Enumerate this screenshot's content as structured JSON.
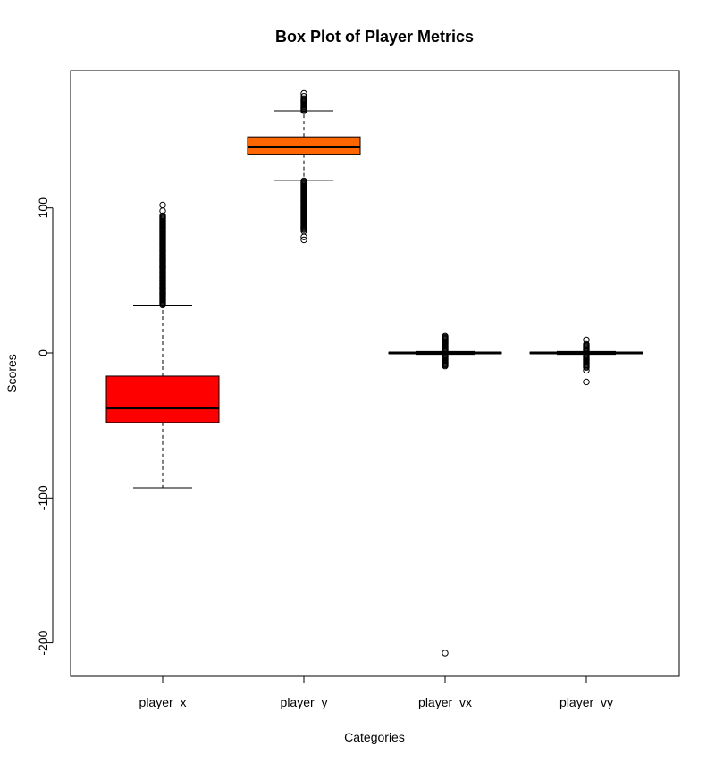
{
  "chart_data": {
    "type": "box",
    "title": "Box Plot of Player Metrics",
    "xlabel": "Categories",
    "ylabel": "Scores",
    "ylim": [
      -225,
      195
    ],
    "yticks": [
      -200,
      -100,
      0,
      100
    ],
    "categories": [
      "player_x",
      "player_y",
      "player_vx",
      "player_vy"
    ],
    "boxes": [
      {
        "name": "player_x",
        "color": "#ff0000",
        "whisker_low": -93,
        "q1": -48,
        "median": -38,
        "q3": -16,
        "whisker_high": 33,
        "outliers_high_range": [
          33,
          95
        ],
        "outliers_extra": [
          102,
          98,
          64,
          59,
          50,
          45,
          41
        ],
        "outliers_low_range": null
      },
      {
        "name": "player_y",
        "color": "#ff6600",
        "whisker_low": 119,
        "q1": 137,
        "median": 142,
        "q3": 149,
        "whisker_high": 167,
        "outliers_high_range": [
          167,
          176
        ],
        "outliers_extra": [
          179,
          177,
          80,
          78,
          84
        ],
        "outliers_low_range": [
          85,
          119
        ]
      },
      {
        "name": "player_vx",
        "color": "#ffffff",
        "whisker_low": -1,
        "q1": -0.5,
        "median": 0,
        "q3": 0.5,
        "whisker_high": 1,
        "outliers_high_range": [
          1,
          12
        ],
        "outliers_extra": [
          -207
        ],
        "outliers_low_range": [
          -9,
          -1
        ]
      },
      {
        "name": "player_vy",
        "color": "#ffffff",
        "whisker_low": -1,
        "q1": -0.5,
        "median": 0,
        "q3": 0.5,
        "whisker_high": 1,
        "outliers_high_range": [
          1,
          6
        ],
        "outliers_extra": [
          9,
          -20,
          -12
        ],
        "outliers_low_range": [
          -10,
          -1
        ]
      }
    ]
  }
}
